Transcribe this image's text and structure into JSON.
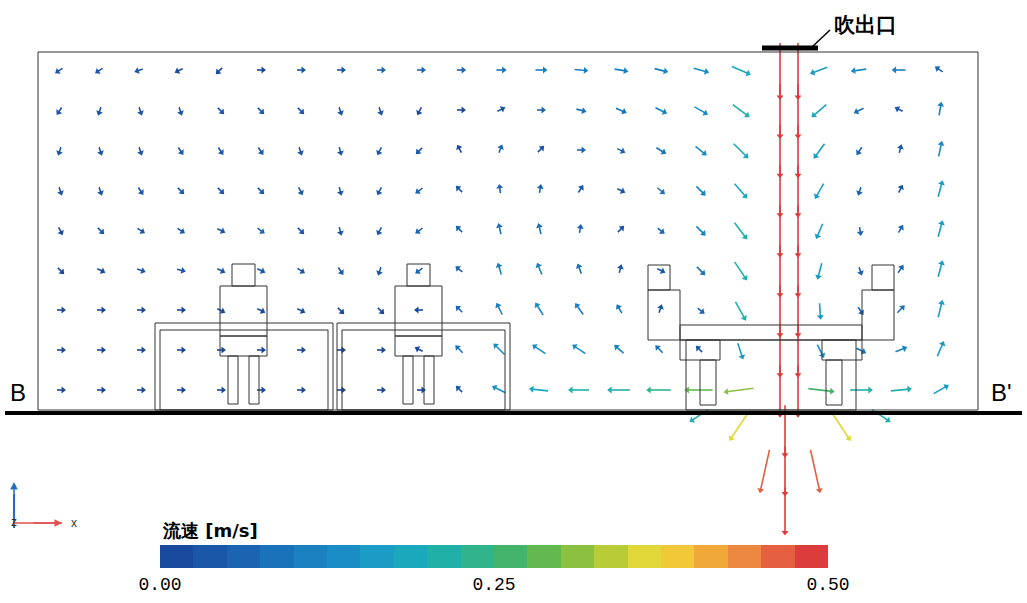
{
  "chart_data": {
    "type": "vector_field",
    "tick_labels": false,
    "xlim": [
      0,
      1027
    ],
    "ylim": [
      0,
      603
    ],
    "texts": {
      "outlet": "吹出口",
      "section_start": "B",
      "section_end": "B'",
      "axis_z": "z",
      "axis_x": "x"
    },
    "colorbar": {
      "title": "流速 [m/s]",
      "range": [
        0,
        0.5
      ],
      "ticks": [
        {
          "value": 0,
          "label": "0.00"
        },
        {
          "value": 0.25,
          "label": "0.25"
        },
        {
          "value": 0.5,
          "label": "0.50"
        }
      ]
    },
    "field": {
      "x": [
        60,
        100,
        140,
        180,
        220,
        260,
        300,
        340,
        380,
        420,
        460,
        500,
        540,
        580,
        620,
        660,
        700,
        740,
        780,
        820,
        860,
        900,
        940
      ],
      "z": [
        533,
        493,
        453,
        413,
        373,
        333,
        293,
        253,
        213
      ],
      "u": [
        [
          -0.03,
          -0.03,
          -0.03,
          -0.02,
          -0.01,
          0.02,
          0.03,
          0.04,
          0.05,
          0.06,
          0.07,
          0.08,
          0.1,
          0.12,
          0.12,
          0.12,
          0.14,
          0.18,
          0,
          -0.16,
          -0.14,
          -0.12,
          -0.06
        ],
        [
          -0.02,
          -0.01,
          0.01,
          0.01,
          0.02,
          0.02,
          0.02,
          0.01,
          0.01,
          -0.01,
          0.02,
          0.04,
          0.06,
          0.08,
          0.09,
          0.1,
          0.12,
          0.16,
          0,
          -0.14,
          -0.08,
          -0.04,
          0.02
        ],
        [
          -0.01,
          0.01,
          0.01,
          0.02,
          0.02,
          0.02,
          0.01,
          0.01,
          -0.02,
          -0.03,
          -0.01,
          0.02,
          0.03,
          0.05,
          0.06,
          0.08,
          0.1,
          0.14,
          0,
          -0.1,
          -0.04,
          0.01,
          0.03
        ],
        [
          0.01,
          0.01,
          0.02,
          0.03,
          0.03,
          0.03,
          0.02,
          0.01,
          -0.02,
          -0.04,
          -0.03,
          -0.01,
          0.01,
          0.02,
          0.04,
          0.06,
          0.08,
          0.12,
          0,
          -0.08,
          -0.02,
          0.02,
          0.04
        ],
        [
          0.01,
          0.02,
          0.03,
          0.03,
          0.04,
          0.04,
          0.03,
          0.01,
          -0.02,
          -0.04,
          -0.04,
          -0.02,
          -0.02,
          0.01,
          0.02,
          0.05,
          0.08,
          0.12,
          0,
          -0.06,
          0.01,
          0.03,
          0.04
        ],
        [
          0.01,
          0.02,
          0.03,
          0.04,
          0.04,
          0.04,
          0.03,
          0.02,
          -0.01,
          -0.04,
          -0.05,
          -0.03,
          -0.04,
          -0.03,
          0.01,
          0.04,
          0.07,
          0.12,
          0,
          -0.04,
          0.02,
          0.04,
          0.04
        ],
        [
          0.01,
          0.01,
          0.02,
          0.02,
          0.02,
          0.02,
          0.02,
          0.01,
          0.01,
          -0.02,
          -0.05,
          -0.05,
          -0.07,
          -0.07,
          -0.04,
          0.01,
          0.05,
          0.1,
          0,
          0.01,
          0.04,
          0.06,
          0.04
        ],
        [
          0.01,
          0.01,
          0.01,
          0.01,
          0.01,
          0.01,
          0.01,
          0.01,
          0.01,
          -0.02,
          -0.06,
          -0.1,
          -0.12,
          -0.12,
          -0.08,
          -0.06,
          -0.03,
          0.05,
          0,
          0.06,
          0.08,
          0.1,
          0.06
        ],
        [
          0.01,
          0.01,
          0.01,
          0.01,
          0.01,
          0.01,
          0.01,
          0.01,
          0.01,
          0.01,
          -0.02,
          -0.12,
          -0.18,
          -0.2,
          -0.22,
          -0.24,
          -0.28,
          -0.3,
          0,
          0.26,
          0.22,
          0.2,
          0.14
        ]
      ],
      "w": [
        [
          -0.02,
          -0.02,
          -0.01,
          -0.01,
          -0.01,
          0,
          0,
          0,
          0,
          0,
          0,
          0,
          0,
          -0.01,
          -0.02,
          -0.03,
          -0.04,
          -0.08,
          -0.6,
          -0.06,
          -0.02,
          0,
          0.04
        ],
        [
          -0.03,
          -0.03,
          -0.03,
          -0.03,
          -0.02,
          -0.02,
          -0.02,
          -0.03,
          -0.03,
          -0.02,
          0,
          0.02,
          0,
          -0.02,
          -0.04,
          -0.05,
          -0.07,
          -0.12,
          -0.58,
          -0.12,
          -0.04,
          0.02,
          0.12
        ],
        [
          -0.03,
          -0.03,
          -0.03,
          -0.03,
          -0.03,
          -0.03,
          -0.03,
          -0.04,
          -0.04,
          -0.03,
          0.02,
          0.05,
          0.03,
          0,
          -0.03,
          -0.05,
          -0.08,
          -0.14,
          -0.56,
          -0.14,
          -0.06,
          0.04,
          0.14
        ],
        [
          -0.03,
          -0.03,
          -0.03,
          -0.03,
          -0.03,
          -0.03,
          -0.04,
          -0.04,
          -0.04,
          -0.03,
          0.03,
          0.07,
          0.06,
          0.03,
          -0.02,
          -0.05,
          -0.08,
          -0.14,
          -0.55,
          -0.14,
          -0.06,
          0.04,
          0.15
        ],
        [
          -0.02,
          -0.02,
          -0.02,
          -0.02,
          -0.02,
          -0.03,
          -0.03,
          -0.04,
          -0.04,
          -0.03,
          0.04,
          0.09,
          0.09,
          0.06,
          0.02,
          -0.04,
          -0.08,
          -0.16,
          -0.55,
          -0.14,
          -0.06,
          0.05,
          0.15
        ],
        [
          -0.01,
          -0.01,
          -0.01,
          -0.01,
          -0.02,
          -0.02,
          -0.02,
          -0.03,
          -0.03,
          -0.03,
          0.04,
          0.1,
          0.1,
          0.08,
          0.04,
          -0.02,
          -0.07,
          -0.18,
          -0.55,
          -0.15,
          -0.06,
          0.06,
          0.15
        ],
        [
          0,
          0,
          0,
          0,
          -0.01,
          -0.01,
          -0.01,
          -0.01,
          -0.01,
          0,
          0.05,
          0.1,
          0.11,
          0.1,
          0.07,
          0.03,
          -0.04,
          -0.18,
          -0.55,
          -0.15,
          -0.06,
          0.06,
          0.16
        ],
        [
          0,
          0,
          0,
          0,
          0,
          0,
          0,
          0,
          0,
          0.01,
          0.06,
          0.1,
          0.08,
          0.08,
          0.07,
          0.06,
          0.03,
          -0.15,
          -0.55,
          -0.12,
          -0.04,
          0.04,
          0.14
        ],
        [
          0,
          0,
          0,
          0,
          0,
          0,
          0,
          0,
          0,
          0,
          0.02,
          0.06,
          0.02,
          0,
          0,
          0,
          0,
          -0.04,
          -0.55,
          -0.03,
          0,
          0.02,
          0.08
        ]
      ]
    },
    "jet": {
      "x": [
        798,
        798,
        798,
        798,
        798,
        798,
        798,
        798,
        798,
        785,
        785,
        785,
        740,
        840,
        700,
        880,
        765,
        815
      ],
      "z": [
        533,
        493,
        453,
        413,
        373,
        333,
        293,
        253,
        213,
        173,
        133,
        93,
        178,
        178,
        188,
        188,
        133,
        133
      ],
      "u": [
        0,
        0,
        0,
        0,
        0,
        0,
        0,
        0,
        0,
        0,
        0,
        0,
        -0.2,
        0.2,
        -0.18,
        0.18,
        -0.1,
        0.1
      ],
      "w": [
        -0.6,
        -0.58,
        -0.56,
        -0.55,
        -0.55,
        -0.55,
        -0.55,
        -0.55,
        -0.55,
        -0.55,
        -0.52,
        -0.5,
        -0.3,
        -0.3,
        -0.12,
        -0.12,
        -0.45,
        -0.45
      ]
    }
  }
}
